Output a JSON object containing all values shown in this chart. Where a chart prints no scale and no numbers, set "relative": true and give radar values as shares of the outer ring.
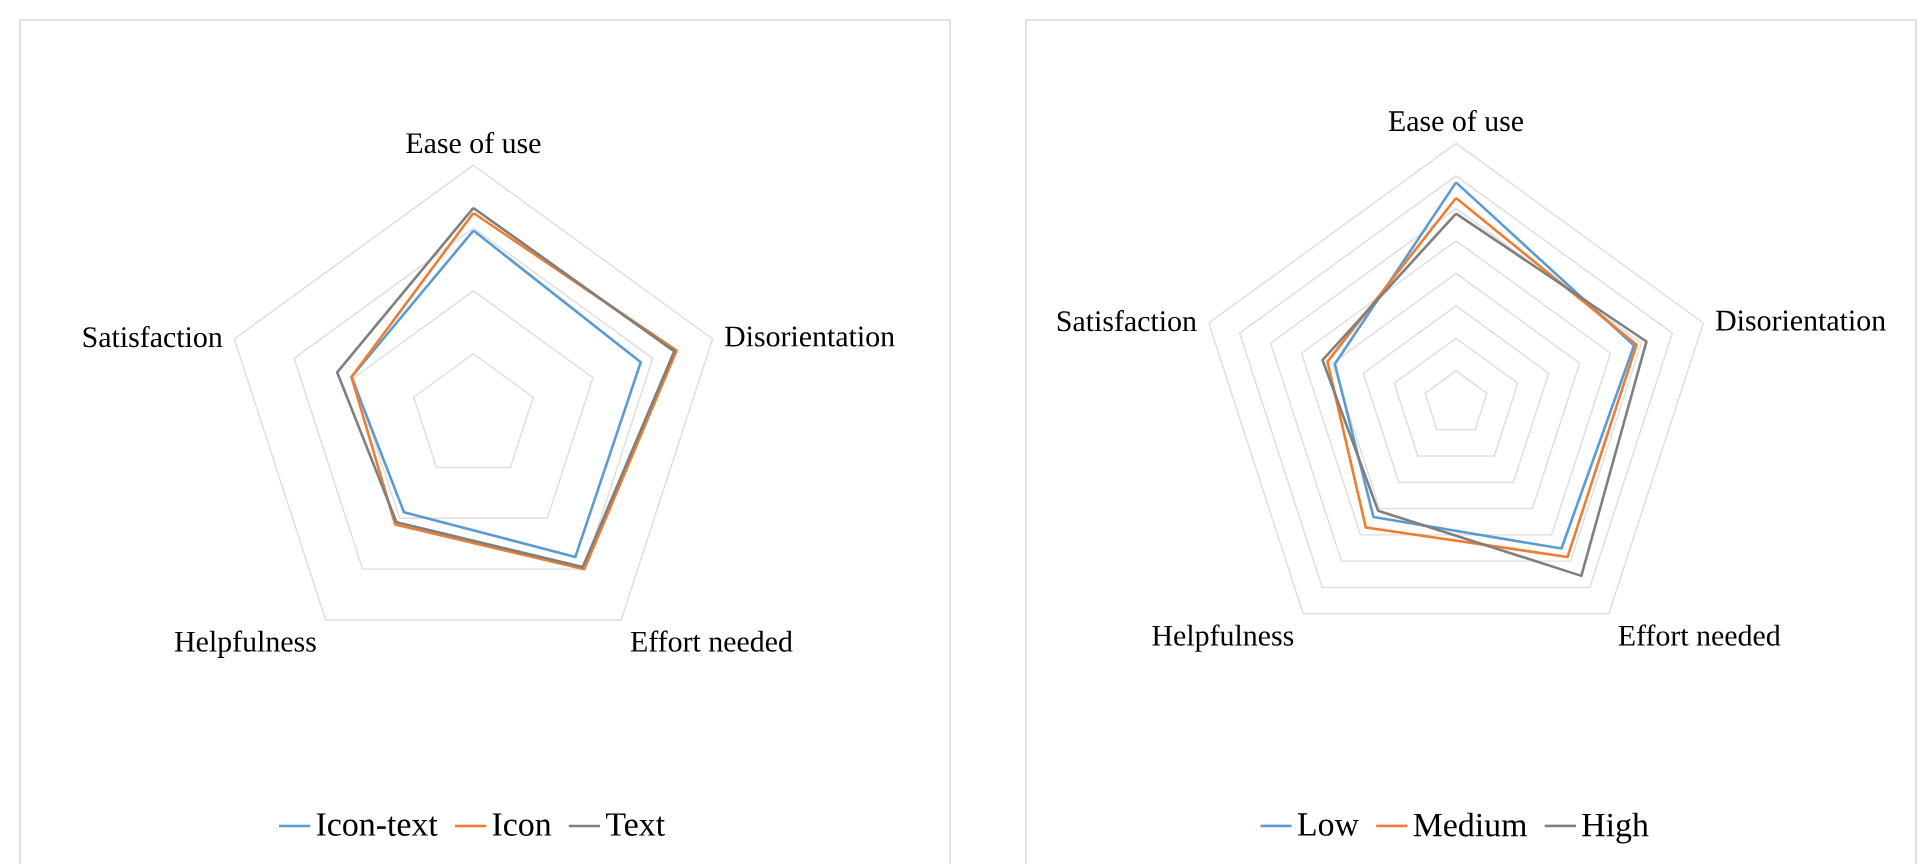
{
  "chart_data": [
    {
      "type": "radar",
      "relative": true,
      "grid": true,
      "legend": "bottom",
      "marker": "none",
      "line_style": "solid",
      "categories": [
        "Ease of use",
        "Disorientation",
        "Effort needed",
        "Helpfulness",
        "Satisfaction"
      ],
      "series": [
        {
          "name": "Icon-text",
          "color": "#5b9bd5",
          "values": [
            0.74,
            0.7,
            0.69,
            0.47,
            0.51
          ]
        },
        {
          "name": "Icon",
          "color": "#ed7d31",
          "values": [
            0.81,
            0.85,
            0.75,
            0.53,
            0.51
          ]
        },
        {
          "name": "Text",
          "color": "#7f7f7f",
          "values": [
            0.83,
            0.84,
            0.74,
            0.52,
            0.57
          ]
        }
      ]
    },
    {
      "type": "radar",
      "relative": true,
      "grid": true,
      "legend": "bottom",
      "marker": "none",
      "line_style": "solid",
      "categories": [
        "Ease of use",
        "Disorientation",
        "Effort needed",
        "Helpfulness",
        "Satisfaction"
      ],
      "series": [
        {
          "name": "Low",
          "color": "#5b9bd5",
          "values": [
            0.85,
            0.72,
            0.69,
            0.54,
            0.49
          ]
        },
        {
          "name": "Medium",
          "color": "#ed7d31",
          "values": [
            0.79,
            0.73,
            0.73,
            0.59,
            0.52
          ]
        },
        {
          "name": "High",
          "color": "#7f7f7f",
          "values": [
            0.73,
            0.77,
            0.82,
            0.51,
            0.54
          ]
        }
      ]
    }
  ]
}
